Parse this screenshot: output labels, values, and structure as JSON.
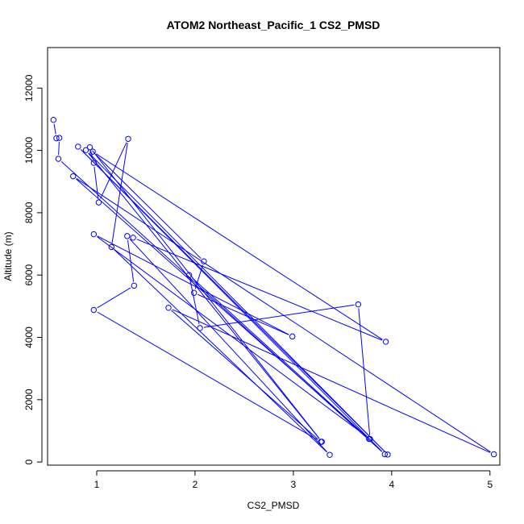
{
  "chart_data": {
    "type": "scatter",
    "title": "ATOM2 Northeast_Pacific_1 CS2_PMSD",
    "xlabel": "CS2_PMSD",
    "ylabel": "Altitude (m)",
    "xlim": [
      0.5,
      5.1
    ],
    "ylim": [
      -100,
      13300
    ],
    "x_ticks": [
      1,
      2,
      3,
      4,
      5
    ],
    "y_ticks": [
      0,
      2000,
      4000,
      6000,
      8000,
      10000,
      12000
    ],
    "grid": false,
    "legend": "none",
    "line_color": "#0000ff",
    "series": [
      {
        "mode": "lines+markers",
        "x": [
          0.56,
          0.59,
          0.62,
          0.61,
          3.93,
          0.81,
          3.96,
          0.89,
          3.29,
          0.93,
          0.97,
          1.02,
          1.32,
          1.15,
          3.37,
          1.31,
          1.38,
          0.97,
          3.28,
          1.73,
          5.04,
          0.76,
          3.77,
          1.94,
          2.05,
          3.66,
          3.78,
          0.97,
          2.99,
          1.99,
          2.09,
          0.96,
          3.94,
          1.37
        ],
        "y": [
          10980,
          10390,
          10400,
          9730,
          250,
          10120,
          240,
          10010,
          650,
          10100,
          9600,
          8330,
          10370,
          6900,
          230,
          7250,
          5660,
          4880,
          650,
          4950,
          250,
          9170,
          740,
          6000,
          4300,
          5060,
          740,
          7310,
          4030,
          5430,
          6440,
          9960,
          3860,
          7200
        ]
      }
    ]
  }
}
